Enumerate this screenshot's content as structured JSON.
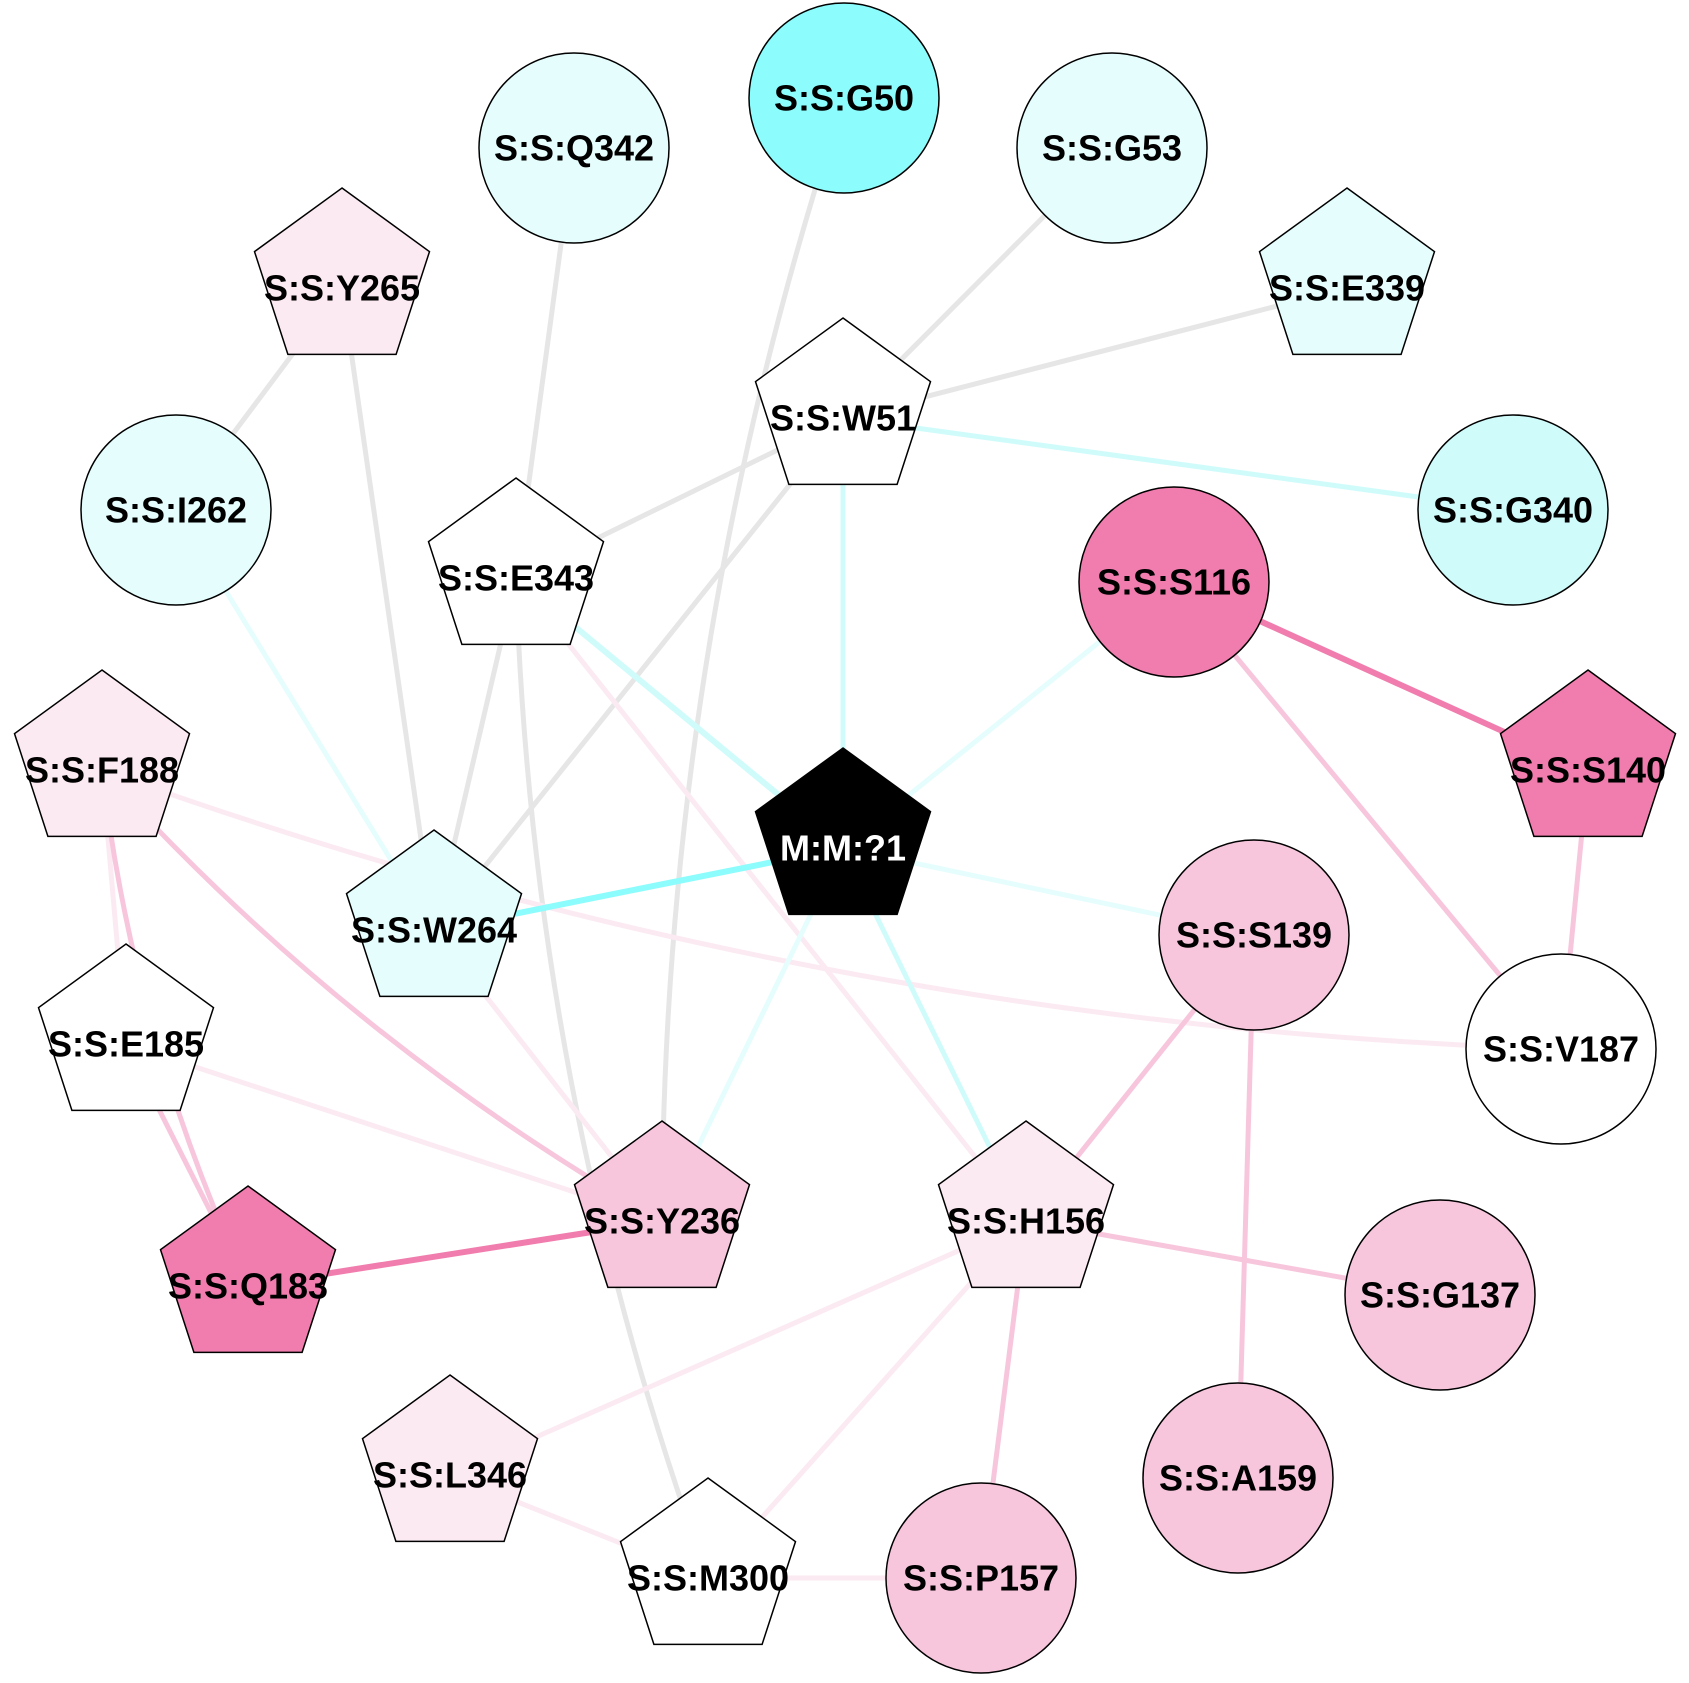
{
  "colors": {
    "gray": "#e6e6e6",
    "cyan_light": "#e6fdfd",
    "cyan_mid": "#d0fbfb",
    "cyan_strong": "#8cfcfc",
    "pink_pale": "#fbeaf2",
    "pink_light": "#f7c6dc",
    "pink_strong": "#f07dad",
    "black": "#000000",
    "white": "#ffffff",
    "outline": "#000000"
  },
  "nodes": [
    {
      "id": "G50",
      "label": "S:S:G50",
      "shape": "circle",
      "fill": "cyan_strong"
    },
    {
      "id": "Q342",
      "label": "S:S:Q342",
      "shape": "circle",
      "fill": "cyan_light"
    },
    {
      "id": "G53",
      "label": "S:S:G53",
      "shape": "circle",
      "fill": "cyan_light"
    },
    {
      "id": "Y265",
      "label": "S:S:Y265",
      "shape": "pentagon",
      "fill": "pink_pale"
    },
    {
      "id": "E339",
      "label": "S:S:E339",
      "shape": "pentagon",
      "fill": "cyan_light"
    },
    {
      "id": "W51",
      "label": "S:S:W51",
      "shape": "pentagon",
      "fill": "white"
    },
    {
      "id": "I262",
      "label": "S:S:I262",
      "shape": "circle",
      "fill": "cyan_light"
    },
    {
      "id": "G340",
      "label": "S:S:G340",
      "shape": "circle",
      "fill": "cyan_mid"
    },
    {
      "id": "E343",
      "label": "S:S:E343",
      "shape": "pentagon",
      "fill": "white"
    },
    {
      "id": "S116",
      "label": "S:S:S116",
      "shape": "circle",
      "fill": "pink_strong"
    },
    {
      "id": "F188",
      "label": "S:S:F188",
      "shape": "pentagon",
      "fill": "pink_pale"
    },
    {
      "id": "S140",
      "label": "S:S:S140",
      "shape": "pentagon",
      "fill": "pink_strong"
    },
    {
      "id": "M1",
      "label": "M:M:?1",
      "shape": "pentagon",
      "fill": "black",
      "text_color": "#ffffff"
    },
    {
      "id": "W264",
      "label": "S:S:W264",
      "shape": "pentagon",
      "fill": "cyan_light"
    },
    {
      "id": "S139",
      "label": "S:S:S139",
      "shape": "circle",
      "fill": "pink_light"
    },
    {
      "id": "E185",
      "label": "S:S:E185",
      "shape": "pentagon",
      "fill": "white"
    },
    {
      "id": "V187",
      "label": "S:S:V187",
      "shape": "circle",
      "fill": "white"
    },
    {
      "id": "Y236",
      "label": "S:S:Y236",
      "shape": "pentagon",
      "fill": "pink_light"
    },
    {
      "id": "H156",
      "label": "S:S:H156",
      "shape": "pentagon",
      "fill": "pink_pale"
    },
    {
      "id": "Q183",
      "label": "S:S:Q183",
      "shape": "pentagon",
      "fill": "pink_strong"
    },
    {
      "id": "G137",
      "label": "S:S:G137",
      "shape": "circle",
      "fill": "pink_light"
    },
    {
      "id": "L346",
      "label": "S:S:L346",
      "shape": "pentagon",
      "fill": "pink_pale"
    },
    {
      "id": "A159",
      "label": "S:S:A159",
      "shape": "circle",
      "fill": "pink_light"
    },
    {
      "id": "M300",
      "label": "S:S:M300",
      "shape": "pentagon",
      "fill": "white"
    },
    {
      "id": "P157",
      "label": "S:S:P157",
      "shape": "circle",
      "fill": "pink_light"
    }
  ],
  "edges": [
    {
      "from": "G50",
      "to": "Y236",
      "color": "gray",
      "curve": 1
    },
    {
      "from": "Q342",
      "to": "E343",
      "color": "gray"
    },
    {
      "from": "G53",
      "to": "W51",
      "color": "gray"
    },
    {
      "from": "E339",
      "to": "W51",
      "color": "gray"
    },
    {
      "from": "W51",
      "to": "E343",
      "color": "gray"
    },
    {
      "from": "W51",
      "to": "W264",
      "color": "gray"
    },
    {
      "from": "W51",
      "to": "G340",
      "color": "cyan_mid"
    },
    {
      "from": "W51",
      "to": "M1",
      "color": "cyan_mid"
    },
    {
      "from": "Y265",
      "to": "I262",
      "color": "gray"
    },
    {
      "from": "Y265",
      "to": "W264",
      "color": "gray"
    },
    {
      "from": "I262",
      "to": "W264",
      "color": "cyan_light"
    },
    {
      "from": "E343",
      "to": "W264",
      "color": "gray"
    },
    {
      "from": "E343",
      "to": "M300",
      "color": "gray",
      "curve": 1
    },
    {
      "from": "E343",
      "to": "M1",
      "color": "cyan_mid",
      "strong": 1
    },
    {
      "from": "E343",
      "to": "H156",
      "color": "pink_pale"
    },
    {
      "from": "S116",
      "to": "S140",
      "color": "pink_strong",
      "strong": 1
    },
    {
      "from": "S116",
      "to": "V187",
      "color": "pink_light"
    },
    {
      "from": "S116",
      "to": "M1",
      "color": "cyan_light"
    },
    {
      "from": "S140",
      "to": "V187",
      "color": "pink_light"
    },
    {
      "from": "F188",
      "to": "V187",
      "color": "pink_pale",
      "curve": 1
    },
    {
      "from": "F188",
      "to": "E185",
      "color": "pink_pale"
    },
    {
      "from": "F188",
      "to": "Y236",
      "color": "pink_light",
      "curve": 1
    },
    {
      "from": "F188",
      "to": "Q183",
      "color": "pink_light",
      "curve": 1
    },
    {
      "from": "M1",
      "to": "W264",
      "color": "cyan_strong",
      "strong": 1
    },
    {
      "from": "M1",
      "to": "S139",
      "color": "cyan_light"
    },
    {
      "from": "M1",
      "to": "Y236",
      "color": "cyan_light"
    },
    {
      "from": "M1",
      "to": "H156",
      "color": "cyan_mid"
    },
    {
      "from": "W264",
      "to": "Y236",
      "color": "pink_pale"
    },
    {
      "from": "S139",
      "to": "H156",
      "color": "pink_light"
    },
    {
      "from": "S139",
      "to": "A159",
      "color": "pink_light"
    },
    {
      "from": "E185",
      "to": "Y236",
      "color": "pink_pale"
    },
    {
      "from": "E185",
      "to": "Q183",
      "color": "pink_light"
    },
    {
      "from": "Y236",
      "to": "Q183",
      "color": "pink_strong",
      "strong": 1
    },
    {
      "from": "H156",
      "to": "G137",
      "color": "pink_light"
    },
    {
      "from": "H156",
      "to": "P157",
      "color": "pink_light"
    },
    {
      "from": "H156",
      "to": "L346",
      "color": "pink_pale"
    },
    {
      "from": "H156",
      "to": "M300",
      "color": "pink_pale"
    },
    {
      "from": "L346",
      "to": "M300",
      "color": "pink_pale"
    },
    {
      "from": "M300",
      "to": "P157",
      "color": "pink_pale"
    }
  ]
}
